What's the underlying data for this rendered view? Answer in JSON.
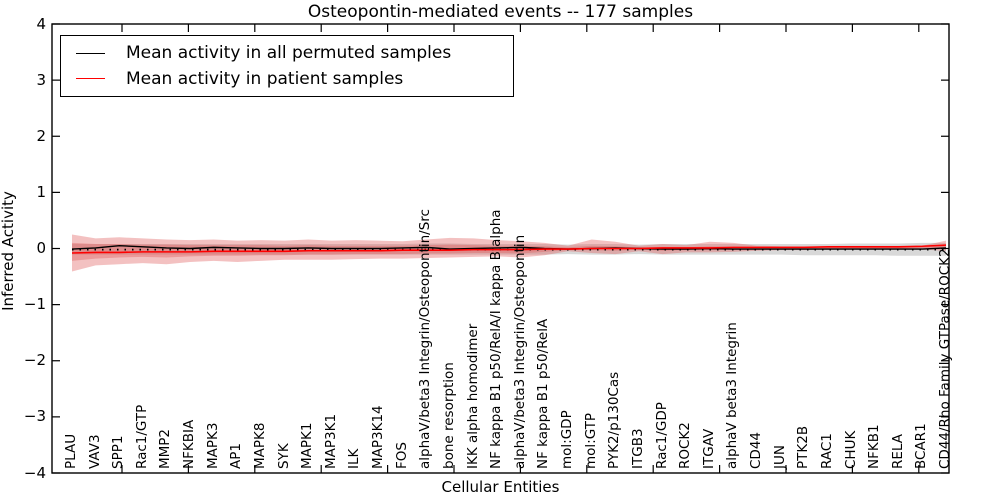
{
  "title": "Osteopontin-mediated events -- 177 samples",
  "xlabel": "Cellular Entities",
  "ylabel": "Inferred Activity",
  "legend": {
    "items": [
      {
        "label": "Mean activity in all permuted samples",
        "color": "#000000"
      },
      {
        "label": "Mean activity in patient samples",
        "color": "#ff0000"
      }
    ]
  },
  "axes": {
    "ytick_values": [
      4,
      3,
      2,
      1,
      0,
      -1,
      -2,
      -3,
      -4
    ],
    "ytick_labels": [
      "4",
      "3",
      "2",
      "1",
      "0",
      "−1",
      "−2",
      "−3",
      "−4"
    ]
  },
  "chart_data": {
    "type": "line",
    "title": "Osteopontin-mediated events -- 177 samples",
    "xlabel": "Cellular Entities",
    "ylabel": "Inferred Activity",
    "ylim": [
      -4,
      4
    ],
    "grid": false,
    "legend_position": "upper left",
    "categories": [
      "PLAU",
      "VAV3",
      "SPP1",
      "Rac1/GTP",
      "MMP2",
      "NFKBIA",
      "MAPK3",
      "AP1",
      "MAPK8",
      "SYK",
      "MAPK1",
      "MAP3K1",
      "ILK",
      "MAP3K14",
      "FOS",
      "alphaV/beta3 Integrin/Osteopontin/Src",
      "bone resorption",
      "IKK alpha homodimer",
      "NF kappa B1 p50/RelA/I kappa B alpha",
      "alphaV/beta3 Integrin/Osteopontin",
      "NF kappa B1 p50/RelA",
      "mol:GDP",
      "mol:GTP",
      "PYK2/p130Cas",
      "ITGB3",
      "Rac1/GDP",
      "ROCK2",
      "ITGAV",
      "alphaV beta3 Integrin",
      "CD44",
      "JUN",
      "PTK2B",
      "RAC1",
      "CHUK",
      "NFKB1",
      "RELA",
      "BCAR1",
      "CD44/Rho Family GTPase/ROCK2"
    ],
    "series": [
      {
        "name": "Mean activity in all permuted samples",
        "color": "#000000",
        "width": 1.4,
        "values": [
          -0.01,
          0.01,
          0.05,
          0.03,
          0.01,
          0.0,
          0.02,
          0.01,
          0.0,
          0.0,
          0.01,
          0.0,
          0.0,
          0.0,
          0.01,
          0.02,
          -0.01,
          0.0,
          0.01,
          0.02,
          0.0,
          -0.01,
          0.0,
          0.01,
          0.0,
          -0.01,
          -0.01,
          0.0,
          -0.01,
          -0.01,
          -0.01,
          -0.01,
          -0.01,
          -0.01,
          -0.01,
          -0.01,
          -0.01,
          0.01
        ]
      },
      {
        "name": "Mean activity in patient samples",
        "color": "#ff0000",
        "width": 1.6,
        "values": [
          -0.08,
          -0.07,
          -0.07,
          -0.06,
          -0.06,
          -0.06,
          -0.05,
          -0.05,
          -0.05,
          -0.05,
          -0.04,
          -0.04,
          -0.04,
          -0.04,
          -0.03,
          -0.03,
          -0.03,
          -0.02,
          -0.02,
          -0.02,
          -0.01,
          -0.01,
          0.0,
          0.0,
          0.0,
          0.01,
          0.01,
          0.01,
          0.02,
          0.02,
          0.02,
          0.02,
          0.03,
          0.03,
          0.03,
          0.03,
          0.04,
          0.06
        ]
      }
    ],
    "zero_line": {
      "style": "dotted",
      "color": "#000000",
      "y": -0.02
    },
    "bands": [
      {
        "name": "permuted-samples-band",
        "color": "#c8c8c8",
        "opacity": 0.7,
        "top": [
          0.08,
          0.08,
          0.08,
          0.08,
          0.08,
          0.08,
          0.08,
          0.08,
          0.08,
          0.08,
          0.08,
          0.08,
          0.08,
          0.08,
          0.08,
          0.09,
          0.09,
          0.08,
          0.08,
          0.08,
          0.08,
          0.07,
          0.08,
          0.08,
          0.07,
          0.08,
          0.08,
          0.08,
          0.08,
          0.08,
          0.08,
          0.08,
          0.08,
          0.09,
          0.09,
          0.09,
          0.1,
          0.1
        ],
        "bottom": [
          -0.11,
          -0.11,
          -0.11,
          -0.11,
          -0.11,
          -0.11,
          -0.11,
          -0.11,
          -0.11,
          -0.11,
          -0.11,
          -0.11,
          -0.11,
          -0.11,
          -0.11,
          -0.11,
          -0.11,
          -0.11,
          -0.11,
          -0.11,
          -0.11,
          -0.1,
          -0.11,
          -0.11,
          -0.1,
          -0.11,
          -0.11,
          -0.11,
          -0.11,
          -0.11,
          -0.11,
          -0.12,
          -0.12,
          -0.12,
          -0.12,
          -0.13,
          -0.13,
          -0.13
        ]
      },
      {
        "name": "patient-samples-band-outer",
        "color": "#e05b5b",
        "opacity": 0.38,
        "top": [
          0.25,
          0.18,
          0.2,
          0.18,
          0.16,
          0.15,
          0.16,
          0.14,
          0.15,
          0.14,
          0.16,
          0.14,
          0.15,
          0.14,
          0.13,
          0.16,
          0.19,
          0.18,
          0.15,
          0.13,
          0.1,
          0.05,
          0.16,
          0.12,
          0.05,
          0.08,
          0.06,
          0.12,
          0.1,
          0.05,
          0.04,
          0.04,
          0.04,
          0.04,
          0.04,
          0.04,
          0.05,
          0.14
        ],
        "bottom": [
          -0.41,
          -0.3,
          -0.28,
          -0.26,
          -0.28,
          -0.24,
          -0.22,
          -0.24,
          -0.22,
          -0.2,
          -0.2,
          -0.2,
          -0.19,
          -0.18,
          -0.18,
          -0.17,
          -0.16,
          -0.15,
          -0.14,
          -0.16,
          -0.12,
          -0.05,
          -0.08,
          -0.1,
          -0.05,
          -0.1,
          -0.07,
          -0.07,
          -0.06,
          -0.04,
          -0.03,
          -0.03,
          -0.02,
          -0.02,
          -0.02,
          -0.02,
          -0.02,
          -0.04
        ]
      },
      {
        "name": "patient-samples-band-inner",
        "color": "#e05b5b",
        "opacity": 0.38,
        "top": [
          0.1,
          0.08,
          0.08,
          0.07,
          0.07,
          0.06,
          0.06,
          0.06,
          0.06,
          0.05,
          0.06,
          0.05,
          0.05,
          0.05,
          0.05,
          0.06,
          0.07,
          0.06,
          0.05,
          0.05,
          0.04,
          0.02,
          0.05,
          0.04,
          0.02,
          0.03,
          0.02,
          0.04,
          0.03,
          0.02,
          0.02,
          0.02,
          0.02,
          0.02,
          0.02,
          0.02,
          0.03,
          0.08
        ],
        "bottom": [
          -0.22,
          -0.18,
          -0.16,
          -0.15,
          -0.16,
          -0.14,
          -0.13,
          -0.13,
          -0.12,
          -0.12,
          -0.11,
          -0.11,
          -0.1,
          -0.1,
          -0.1,
          -0.09,
          -0.09,
          -0.08,
          -0.08,
          -0.09,
          -0.06,
          -0.03,
          -0.03,
          -0.04,
          -0.02,
          -0.04,
          -0.03,
          -0.03,
          -0.02,
          -0.01,
          -0.01,
          -0.01,
          0.0,
          0.0,
          0.0,
          0.0,
          0.01,
          0.02
        ]
      }
    ]
  }
}
